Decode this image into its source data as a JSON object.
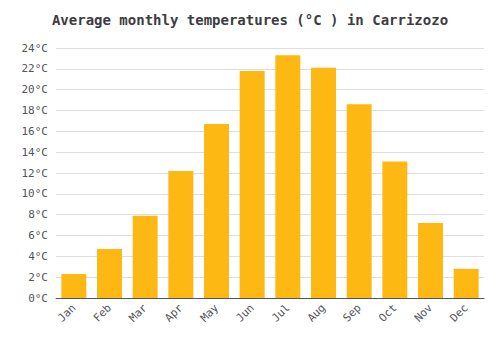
{
  "chart_data": {
    "type": "bar",
    "title": "Average monthly temperatures (°C ) in Carrizozo",
    "categories": [
      "Jan",
      "Feb",
      "Mar",
      "Apr",
      "May",
      "Jun",
      "Jul",
      "Aug",
      "Sep",
      "Oct",
      "Nov",
      "Dec"
    ],
    "values": [
      2.3,
      4.7,
      7.9,
      12.2,
      16.7,
      21.8,
      23.3,
      22.1,
      18.6,
      13.1,
      7.2,
      2.8
    ],
    "color": "#FDB813",
    "ylim": [
      0,
      24
    ],
    "yticks": [
      {
        "value": 0,
        "label": "0°C"
      },
      {
        "value": 2,
        "label": "2°C"
      },
      {
        "value": 4,
        "label": "4°C"
      },
      {
        "value": 6,
        "label": "6°C"
      },
      {
        "value": 8,
        "label": "8°C"
      },
      {
        "value": 10,
        "label": "10°C"
      },
      {
        "value": 12,
        "label": "12°C"
      },
      {
        "value": 14,
        "label": "14°C"
      },
      {
        "value": 16,
        "label": "16°C"
      },
      {
        "value": 18,
        "label": "18°C"
      },
      {
        "value": 20,
        "label": "20°C"
      },
      {
        "value": 22,
        "label": "22°C"
      },
      {
        "value": 24,
        "label": "24°C"
      }
    ],
    "grid": true
  }
}
